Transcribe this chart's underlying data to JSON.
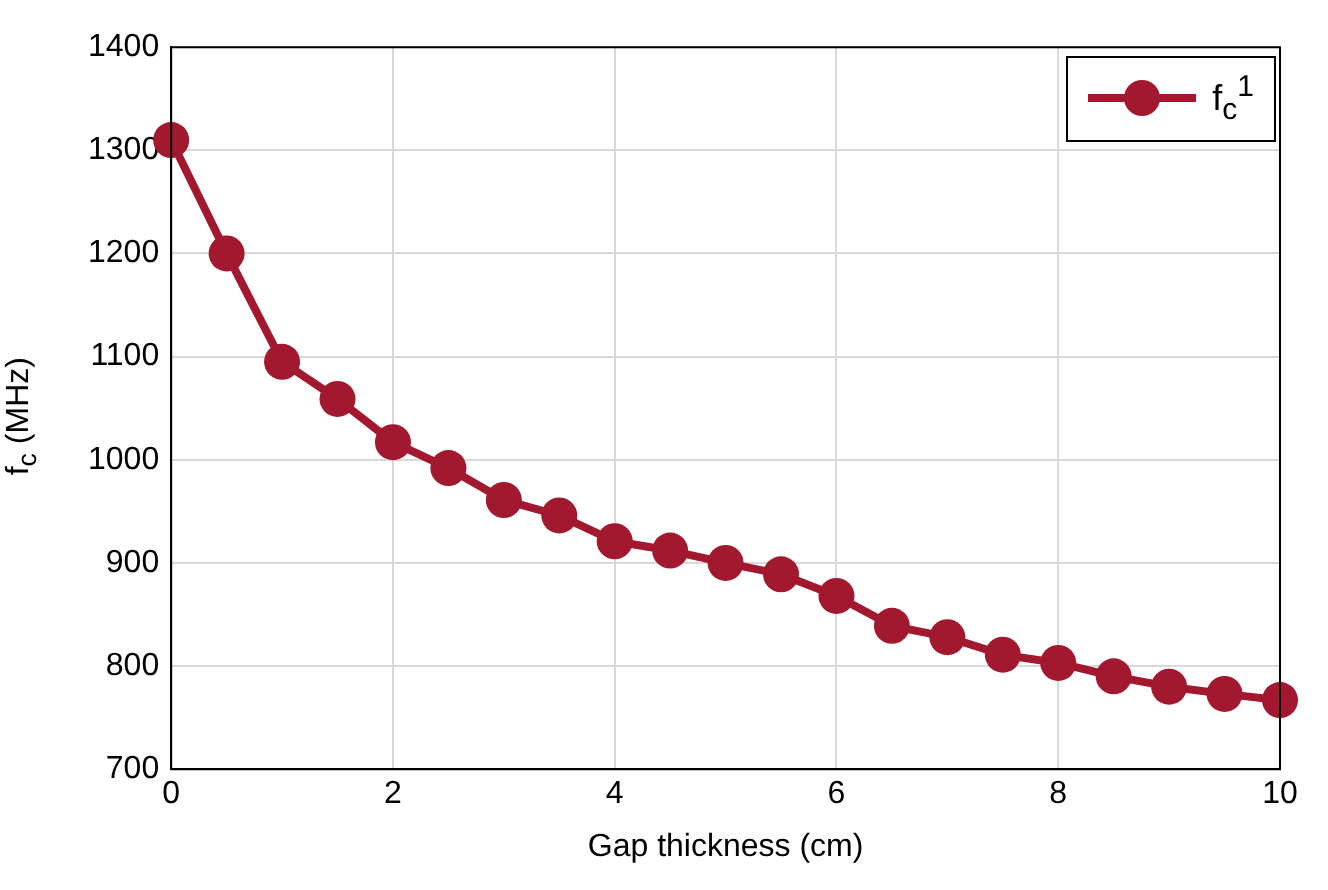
{
  "chart_data": {
    "type": "line",
    "xlabel": "Gap thickness (cm)",
    "ylabel": "f$_{c}$ (MHz)",
    "x": [
      0,
      0.5,
      1,
      1.5,
      2,
      2.5,
      3,
      3.5,
      4,
      4.5,
      5,
      5.5,
      6,
      6.5,
      7,
      7.5,
      8,
      8.5,
      9,
      9.5,
      10
    ],
    "series": [
      {
        "name": "f$_{c}$$^{1}$",
        "color": "#a2192f",
        "values": [
          1310,
          1200,
          1095,
          1059,
          1017,
          992,
          961,
          946,
          921,
          912,
          900,
          889,
          868,
          839,
          828,
          811,
          803,
          790,
          780,
          773,
          767
        ]
      }
    ],
    "xlim": [
      0,
      10
    ],
    "xticks": [
      0,
      2,
      4,
      6,
      8,
      10
    ],
    "ylim": [
      700,
      1400
    ],
    "yticks": [
      700,
      800,
      900,
      1000,
      1100,
      1200,
      1300,
      1400
    ],
    "grid": true,
    "legend": "top right",
    "marker": "circle",
    "line_style": "solid"
  }
}
